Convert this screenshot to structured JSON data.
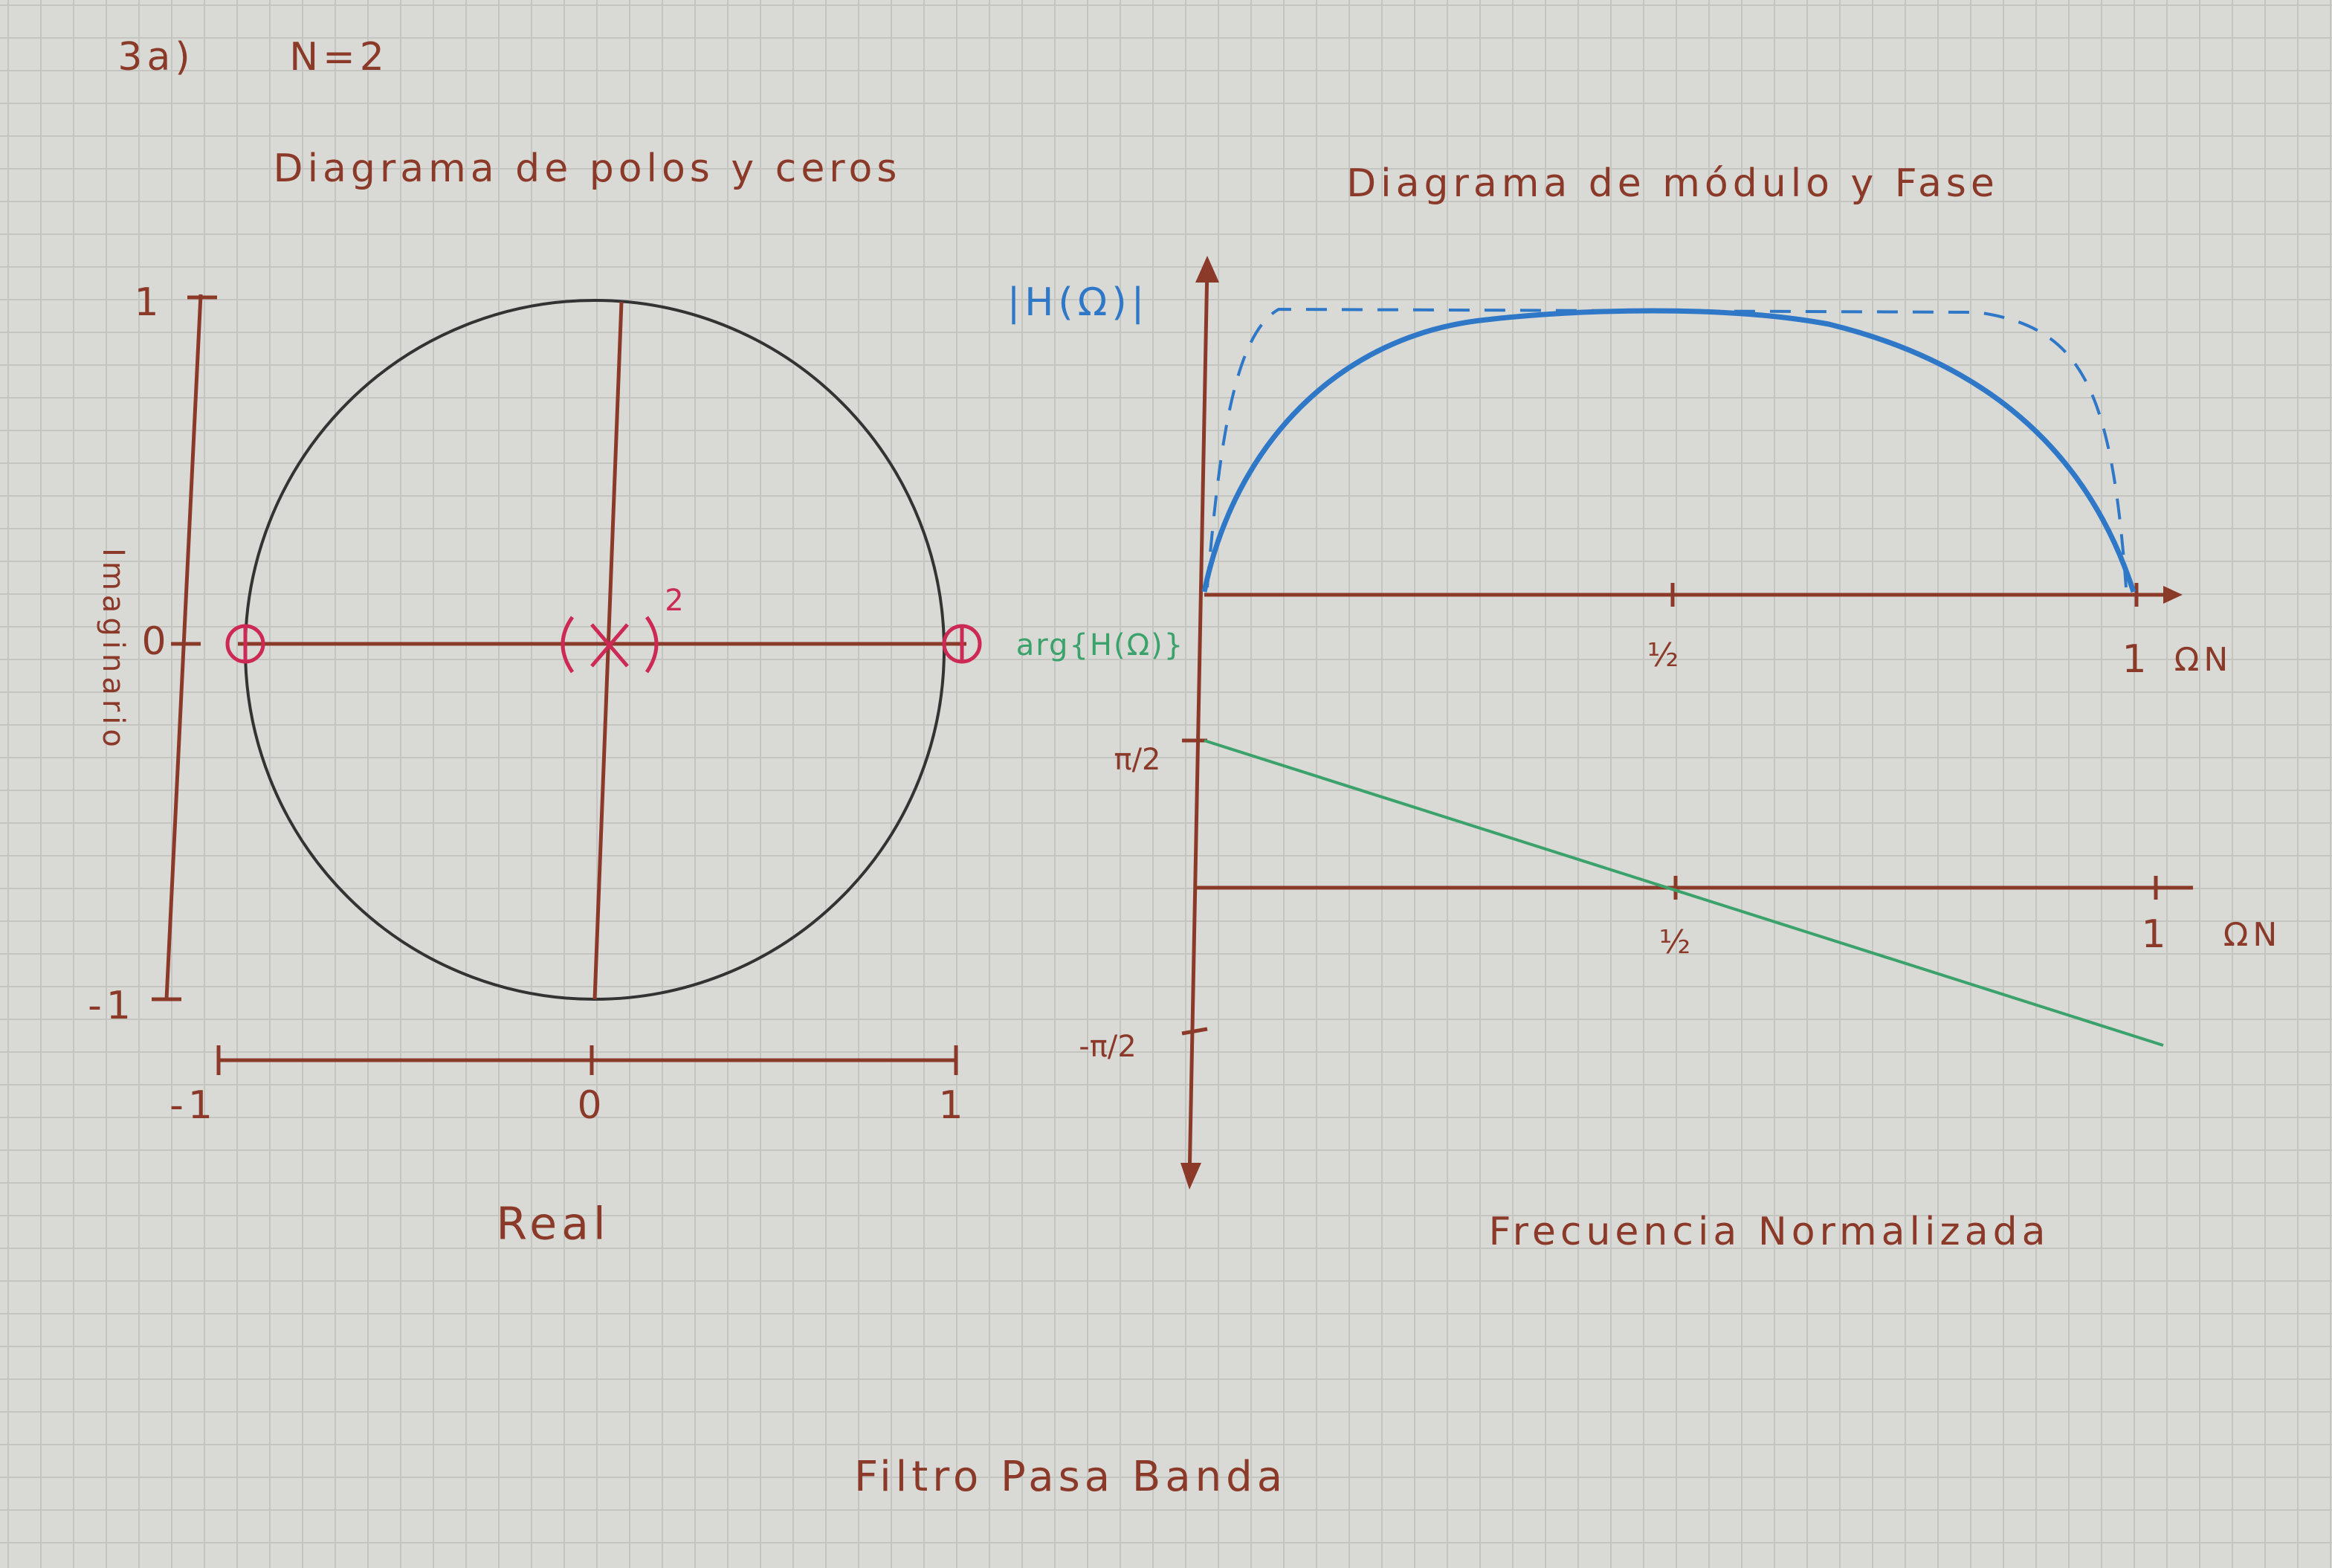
{
  "header": {
    "label": "3a)",
    "order": "N=2"
  },
  "pole_zero_diagram": {
    "title": "Diagrama de polos y ceros",
    "y_axis": {
      "label": "Imaginario",
      "ticks": [
        "1",
        "0",
        "-1"
      ]
    },
    "x_axis": {
      "label": "Real",
      "ticks": [
        "-1",
        "0",
        "1"
      ]
    },
    "pole_multiplicity": "2"
  },
  "magnitude_phase_diagram": {
    "title": "Diagrama de módulo y Fase",
    "magnitude": {
      "label": "|H(Ω)|",
      "ticks": [
        "½",
        "1"
      ],
      "axis_label": "ΩN"
    },
    "phase": {
      "label": "arg{H(Ω)}",
      "ticks": [
        "½",
        "1"
      ],
      "axis_label": "ΩN",
      "y_ticks": [
        "π/2",
        "-π/2"
      ]
    },
    "x_label": "Frecuencia Normalizada"
  },
  "footer": "Filtro Pasa Banda"
}
